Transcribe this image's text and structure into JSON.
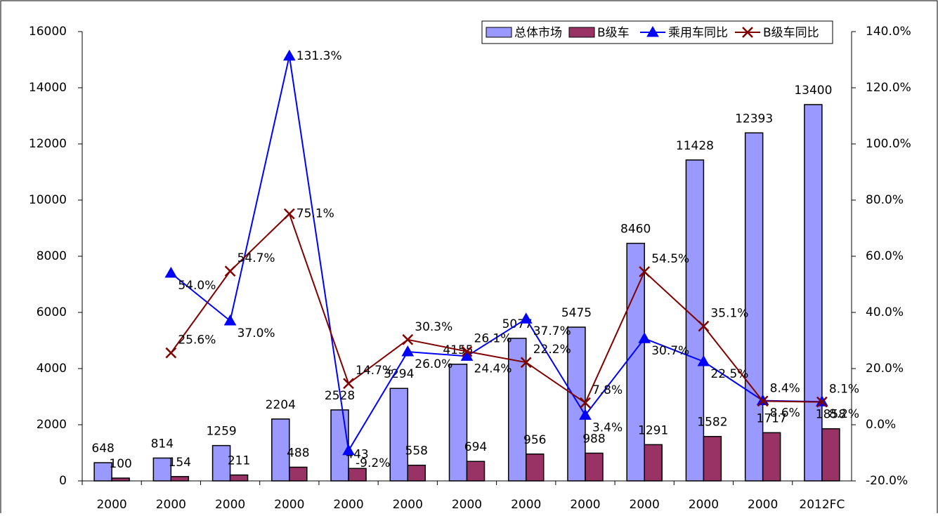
{
  "chart_data": {
    "type": "bar-line",
    "categories": [
      "2000",
      "2000",
      "2000",
      "2000",
      "2000",
      "2000",
      "2000",
      "2000",
      "2000",
      "2000",
      "2000",
      "2000",
      "2012FC"
    ],
    "series": [
      {
        "name": "总体市场",
        "type": "bar",
        "color": "#9999ff",
        "values": [
          648,
          814,
          1259,
          2204,
          2528,
          3294,
          4155,
          5077,
          5475,
          8460,
          11428,
          12393,
          13400
        ]
      },
      {
        "name": "B级车",
        "type": "bar",
        "color": "#993366",
        "values": [
          100,
          154,
          211,
          488,
          443,
          558,
          694,
          956,
          988,
          1291,
          1582,
          1717,
          1858
        ]
      },
      {
        "name": "乘用车同比",
        "type": "line",
        "axis": "y2",
        "marker": "triangle",
        "color": "#0000ff",
        "values": [
          null,
          54.0,
          37.0,
          131.3,
          -9.2,
          26.0,
          24.4,
          37.7,
          3.4,
          30.7,
          22.5,
          8.6,
          8.2
        ],
        "value_labels": [
          null,
          "54.0%",
          "37.0%",
          "131.3%",
          "-9.2%",
          "26.0%",
          "24.4%",
          "37.7%",
          "3.4%",
          "30.7%",
          "22.5%",
          "8.6%",
          "8.2%"
        ]
      },
      {
        "name": "B级车同比",
        "type": "line",
        "axis": "y2",
        "marker": "x",
        "color": "#800000",
        "values": [
          null,
          25.6,
          54.7,
          75.1,
          14.7,
          30.3,
          26.1,
          22.2,
          7.8,
          54.5,
          35.1,
          8.4,
          8.1
        ],
        "value_labels": [
          null,
          "25.6%",
          "54.7%",
          "75.1%",
          "14.7%",
          "30.3%",
          "26.1%",
          "22.2%",
          "7.8%",
          "54.5%",
          "35.1%",
          "8.4%",
          "8.1%"
        ]
      }
    ],
    "ylim": [
      0,
      16000
    ],
    "yticks": [
      0,
      2000,
      4000,
      6000,
      8000,
      10000,
      12000,
      14000,
      16000
    ],
    "y2lim": [
      -20,
      140
    ],
    "y2ticks": [
      {
        "value": -20,
        "label": "-20.0%"
      },
      {
        "value": 0,
        "label": "0.0%"
      },
      {
        "value": 20,
        "label": "20.0%"
      },
      {
        "value": 40,
        "label": "40.0%"
      },
      {
        "value": 60,
        "label": "60.0%"
      },
      {
        "value": 80,
        "label": "80.0%"
      },
      {
        "value": 100,
        "label": "100.0%"
      },
      {
        "value": 120,
        "label": "120.0%"
      },
      {
        "value": 140,
        "label": "140.0%"
      }
    ],
    "legend": "top-right"
  }
}
